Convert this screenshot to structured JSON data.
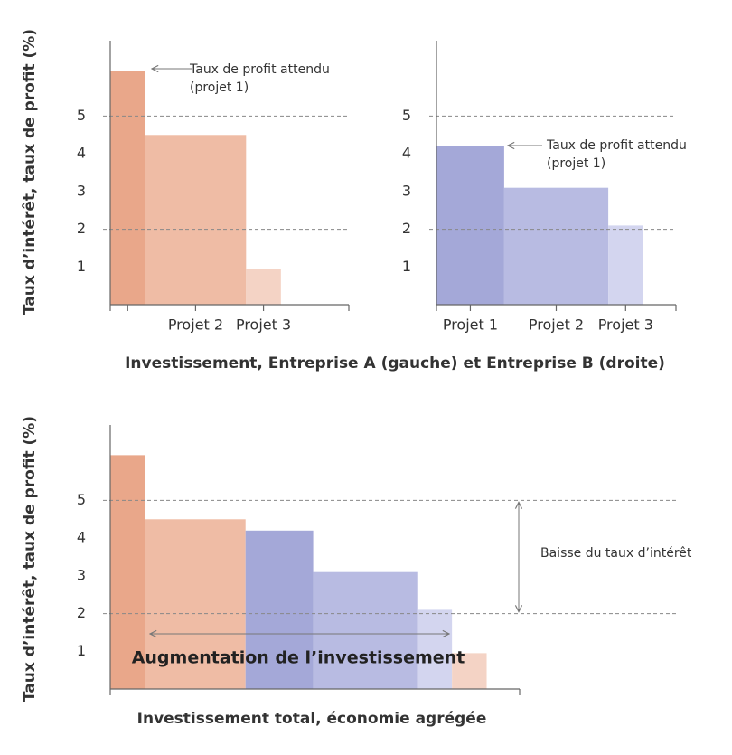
{
  "chart_data": [
    {
      "type": "bar",
      "ylabel": "Taux d’intérêt, taux de profit (%)",
      "xlabel": "Investissement, Entreprise A (gauche) et Entreprise B (droite)",
      "categories": [
        null,
        "Projet 2",
        "Projet 3"
      ],
      "values": [
        6.2,
        4.5,
        0.95
      ],
      "widths": [
        1,
        2.9,
        1
      ],
      "colors": [
        "#e9a78a",
        "#efbca5",
        "#f4d3c5"
      ],
      "xlim": [
        0,
        6.85
      ],
      "ylim": [
        0,
        7
      ],
      "yticks": [
        1,
        2,
        3,
        4,
        5
      ],
      "reference_lines": [
        2,
        5
      ],
      "annotation": [
        "Taux de profit attendu",
        "(projet 1)"
      ]
    },
    {
      "type": "bar",
      "categories": [
        "Projet 1",
        "Projet 2",
        "Projet 3"
      ],
      "values": [
        4.2,
        3.1,
        2.1
      ],
      "widths": [
        1.95,
        3,
        1
      ],
      "colors": [
        "#a4a8d8",
        "#b8bbe2",
        "#d3d5ef"
      ],
      "xlim": [
        0,
        6.9
      ],
      "ylim": [
        0,
        7
      ],
      "yticks": [
        1,
        2,
        3,
        4,
        5
      ],
      "reference_lines": [
        2,
        5
      ],
      "annotation": [
        "Taux de profit attendu",
        "(projet 1)"
      ]
    },
    {
      "type": "bar",
      "ylabel": "Taux d’intérêt, taux de profit (%)",
      "xlabel": "Investissement total, économie agrégée",
      "values": [
        6.2,
        4.5,
        4.2,
        3.1,
        2.1,
        0.95
      ],
      "widths": [
        1,
        2.9,
        1.95,
        3,
        1,
        1
      ],
      "colors": [
        "#e9a78a",
        "#efbca5",
        "#a4a8d8",
        "#b8bbe2",
        "#d3d5ef",
        "#f4d3c5"
      ],
      "xlim": [
        0,
        11.8
      ],
      "ylim": [
        0,
        7
      ],
      "yticks": [
        1,
        2,
        3,
        4,
        5
      ],
      "reference_lines": [
        2,
        5
      ],
      "annotations": [
        "Baisse du taux d’intérêt",
        "Augmentation de l’investissement"
      ]
    }
  ]
}
